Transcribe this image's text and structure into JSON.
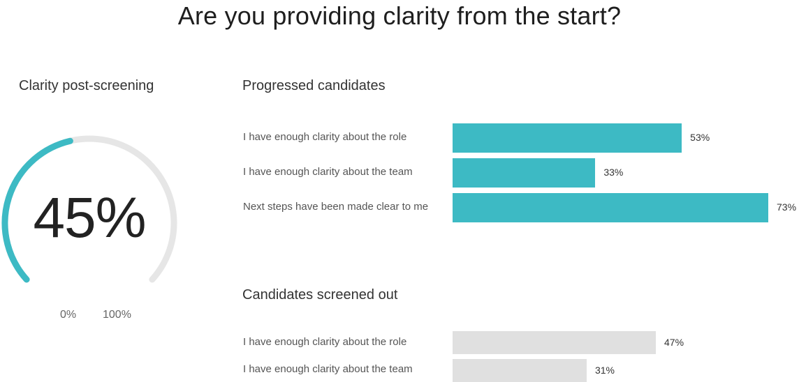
{
  "title": "Are you providing clarity from the start?",
  "gauge": {
    "label": "Clarity post-screening",
    "value": 45,
    "value_text": "45%",
    "min_label": "0%",
    "max_label": "100%",
    "fill_color": "#3dbac4",
    "track_color": "#e6e6e6"
  },
  "chart_data": [
    {
      "type": "bar",
      "orientation": "horizontal",
      "title": "Progressed candidates",
      "categories": [
        "I have enough clarity about the role",
        "I have enough clarity about the team",
        "Next steps have been made clear to me"
      ],
      "values": [
        53,
        33,
        73
      ],
      "value_labels": [
        "53%",
        "33%",
        "73%"
      ],
      "color": "#3dbac4",
      "xlim": [
        0,
        73
      ]
    },
    {
      "type": "bar",
      "orientation": "horizontal",
      "title": "Candidates screened out",
      "categories": [
        "I have enough clarity about the role",
        "I have enough clarity about the team"
      ],
      "values": [
        47,
        31
      ],
      "value_labels": [
        "47%",
        "31%"
      ],
      "color": "#e0e0e0",
      "xlim": [
        0,
        73
      ]
    }
  ]
}
